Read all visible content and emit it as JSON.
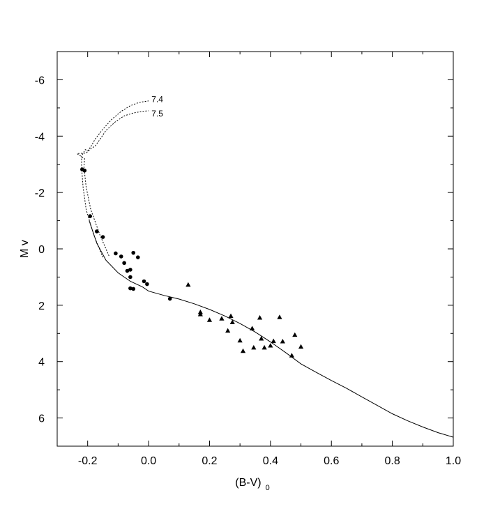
{
  "chart_data": {
    "type": "scatter",
    "title": "",
    "xlabel": "(B-V)",
    "xlabel_subscript": "0",
    "ylabel": "M v",
    "xlim": [
      -0.3,
      1.0
    ],
    "ylim": [
      7,
      -7
    ],
    "y_inverted": true,
    "grid": false,
    "x_ticks": [
      -0.2,
      0.0,
      0.2,
      0.4,
      0.6,
      0.8,
      1.0
    ],
    "x_tick_labels": [
      "-0.2",
      "0.0",
      "0.2",
      "0.4",
      "0.6",
      "0.8",
      "1.0"
    ],
    "y_ticks": [
      -6,
      -4,
      -2,
      0,
      2,
      4,
      6
    ],
    "y_tick_labels": [
      "-6",
      "-4",
      "-2",
      "0",
      "2",
      "4",
      "6"
    ],
    "series": [
      {
        "marker": "circle",
        "points": [
          [
            -0.218,
            -2.82
          ],
          [
            -0.21,
            -2.78
          ],
          [
            -0.192,
            -1.16
          ],
          [
            -0.17,
            -0.62
          ],
          [
            -0.15,
            -0.42
          ],
          [
            -0.108,
            0.16
          ],
          [
            -0.09,
            0.27
          ],
          [
            -0.08,
            0.5
          ],
          [
            -0.07,
            0.78
          ],
          [
            -0.06,
            0.74
          ],
          [
            -0.06,
            1.0
          ],
          [
            -0.06,
            1.4
          ],
          [
            -0.05,
            1.42
          ],
          [
            -0.05,
            0.14
          ],
          [
            -0.035,
            0.3
          ],
          [
            -0.015,
            1.15
          ],
          [
            -0.005,
            1.25
          ],
          [
            0.07,
            1.77
          ]
        ]
      },
      {
        "marker": "triangle",
        "points": [
          [
            0.13,
            1.27
          ],
          [
            0.17,
            2.24
          ],
          [
            0.17,
            2.32
          ],
          [
            0.2,
            2.52
          ],
          [
            0.24,
            2.47
          ],
          [
            0.26,
            2.9
          ],
          [
            0.27,
            2.38
          ],
          [
            0.275,
            2.6
          ],
          [
            0.3,
            3.25
          ],
          [
            0.31,
            3.62
          ],
          [
            0.34,
            2.82
          ],
          [
            0.345,
            3.5
          ],
          [
            0.365,
            2.44
          ],
          [
            0.37,
            3.18
          ],
          [
            0.38,
            3.5
          ],
          [
            0.4,
            3.43
          ],
          [
            0.41,
            3.27
          ],
          [
            0.43,
            2.42
          ],
          [
            0.44,
            3.28
          ],
          [
            0.47,
            3.78
          ],
          [
            0.48,
            3.05
          ],
          [
            0.5,
            3.47
          ]
        ]
      }
    ],
    "curves": [
      {
        "style": "solid",
        "points": [
          [
            -0.195,
            -1.0
          ],
          [
            -0.17,
            -0.2
          ],
          [
            -0.14,
            0.4
          ],
          [
            -0.1,
            0.85
          ],
          [
            -0.06,
            1.15
          ],
          [
            -0.02,
            1.35
          ],
          [
            0.0,
            1.5
          ],
          [
            0.05,
            1.65
          ],
          [
            0.1,
            1.78
          ],
          [
            0.15,
            1.95
          ],
          [
            0.2,
            2.15
          ],
          [
            0.25,
            2.38
          ],
          [
            0.3,
            2.65
          ],
          [
            0.35,
            2.95
          ],
          [
            0.4,
            3.3
          ],
          [
            0.45,
            3.68
          ],
          [
            0.5,
            4.08
          ],
          [
            0.55,
            4.38
          ],
          [
            0.6,
            4.67
          ],
          [
            0.65,
            4.95
          ],
          [
            0.7,
            5.25
          ],
          [
            0.75,
            5.55
          ],
          [
            0.8,
            5.85
          ],
          [
            0.85,
            6.1
          ],
          [
            0.9,
            6.32
          ],
          [
            0.95,
            6.52
          ],
          [
            1.0,
            6.68
          ]
        ]
      },
      {
        "style": "dotted",
        "label": "7.4",
        "points": [
          [
            -0.15,
            0.3
          ],
          [
            -0.18,
            -0.5
          ],
          [
            -0.205,
            -1.4
          ],
          [
            -0.215,
            -2.2
          ],
          [
            -0.22,
            -2.9
          ],
          [
            -0.22,
            -3.3
          ],
          [
            -0.208,
            -3.52
          ],
          [
            -0.2,
            -3.48
          ],
          [
            -0.19,
            -3.62
          ],
          [
            -0.175,
            -3.9
          ],
          [
            -0.15,
            -4.25
          ],
          [
            -0.12,
            -4.6
          ],
          [
            -0.09,
            -4.88
          ],
          [
            -0.06,
            -5.08
          ],
          [
            -0.03,
            -5.2
          ],
          [
            0.0,
            -5.25
          ]
        ]
      },
      {
        "style": "dotted",
        "label": "7.5",
        "points": [
          [
            -0.13,
            0.25
          ],
          [
            -0.16,
            -0.5
          ],
          [
            -0.19,
            -1.4
          ],
          [
            -0.205,
            -2.2
          ],
          [
            -0.212,
            -2.9
          ],
          [
            -0.21,
            -3.2
          ],
          [
            -0.235,
            -3.38
          ],
          [
            -0.205,
            -3.4
          ],
          [
            -0.19,
            -3.55
          ],
          [
            -0.175,
            -3.65
          ],
          [
            -0.16,
            -3.88
          ],
          [
            -0.14,
            -4.2
          ],
          [
            -0.11,
            -4.5
          ],
          [
            -0.08,
            -4.72
          ],
          [
            -0.05,
            -4.82
          ],
          [
            -0.02,
            -4.88
          ],
          [
            0.0,
            -4.9
          ]
        ]
      }
    ],
    "annotations": [
      {
        "text": "7.4",
        "x": 0.005,
        "y": -5.3
      },
      {
        "text": "7.5",
        "x": 0.005,
        "y": -4.8
      }
    ]
  }
}
